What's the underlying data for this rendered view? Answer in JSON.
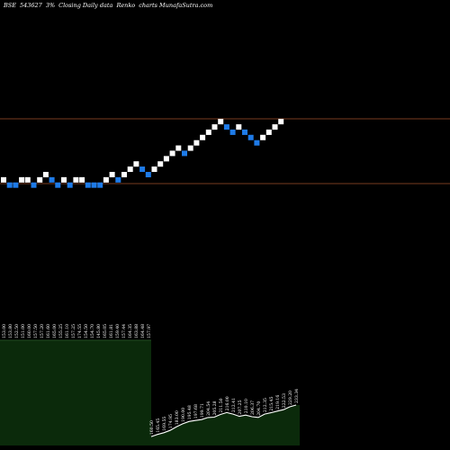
{
  "header": {
    "exchange": "BSE",
    "symbol": "543627",
    "pct": "3%",
    "link": "Closing Daily data",
    "product": "Renko",
    "site": "charts MunafaSutra.com"
  },
  "colors": {
    "background": "#000000",
    "up_brick": "#ffffff",
    "down_brick": "#1e7be8",
    "reference_line": "#a0522d",
    "volume_fill": "#0b2a0b",
    "volume_line": "#ffffff"
  },
  "chart_data": [
    {
      "type": "renko",
      "box_size_pct": 3,
      "reference_lines": [
        236.5,
        172.4
      ],
      "bricks": [
        {
          "dir": "up",
          "price": 176.1
        },
        {
          "dir": "down",
          "price": 170.9
        },
        {
          "dir": "down",
          "price": 170.9
        },
        {
          "dir": "up",
          "price": 176.1
        },
        {
          "dir": "up",
          "price": 176.1
        },
        {
          "dir": "down",
          "price": 170.9
        },
        {
          "dir": "up",
          "price": 176.1
        },
        {
          "dir": "up",
          "price": 181.3
        },
        {
          "dir": "down",
          "price": 176.1
        },
        {
          "dir": "down",
          "price": 170.9
        },
        {
          "dir": "up",
          "price": 176.1
        },
        {
          "dir": "down",
          "price": 170.9
        },
        {
          "dir": "up",
          "price": 176.1
        },
        {
          "dir": "up",
          "price": 176.1
        },
        {
          "dir": "down",
          "price": 170.9
        },
        {
          "dir": "down",
          "price": 170.9
        },
        {
          "dir": "down",
          "price": 170.9
        },
        {
          "dir": "up",
          "price": 176.1
        },
        {
          "dir": "up",
          "price": 181.3
        },
        {
          "dir": "down",
          "price": 176.1
        },
        {
          "dir": "up",
          "price": 181.3
        },
        {
          "dir": "up",
          "price": 186.6
        },
        {
          "dir": "up",
          "price": 191.8
        },
        {
          "dir": "down",
          "price": 186.6
        },
        {
          "dir": "down",
          "price": 181.3
        },
        {
          "dir": "up",
          "price": 186.6
        },
        {
          "dir": "up",
          "price": 191.8
        },
        {
          "dir": "up",
          "price": 197.0
        },
        {
          "dir": "up",
          "price": 202.3
        },
        {
          "dir": "up",
          "price": 207.5
        },
        {
          "dir": "down",
          "price": 202.3
        },
        {
          "dir": "up",
          "price": 207.5
        },
        {
          "dir": "up",
          "price": 212.7
        },
        {
          "dir": "up",
          "price": 218.0
        },
        {
          "dir": "up",
          "price": 223.2
        },
        {
          "dir": "up",
          "price": 228.4
        },
        {
          "dir": "up",
          "price": 233.7
        },
        {
          "dir": "down",
          "price": 228.4
        },
        {
          "dir": "down",
          "price": 223.2
        },
        {
          "dir": "up",
          "price": 228.4
        },
        {
          "dir": "down",
          "price": 223.2
        },
        {
          "dir": "down",
          "price": 218.0
        },
        {
          "dir": "down",
          "price": 212.7
        },
        {
          "dir": "up",
          "price": 218.0
        },
        {
          "dir": "up",
          "price": 223.2
        },
        {
          "dir": "up",
          "price": 228.4
        },
        {
          "dir": "up",
          "price": 233.7
        }
      ]
    },
    {
      "type": "area",
      "series_role": "price_levels",
      "labels": [
        "153.00",
        "153.80",
        "152.50",
        "151.00",
        "160.00",
        "157.50",
        "157.20",
        "161.60",
        "165.00",
        "155.25",
        "161.10",
        "157.25",
        "174.55",
        "154.50",
        "154.70",
        "145.80",
        "165.05",
        "161.81",
        "159.40",
        "157.44",
        "164.35",
        "163.88",
        "164.48",
        "157.97",
        "160.50",
        "165.45",
        "169.55",
        "174.95",
        "183.00",
        "190.00",
        "195.48",
        "197.68",
        "199.71",
        "204.54",
        "205.28",
        "211.50",
        "216.00",
        "212.41",
        "207.25",
        "210.10",
        "206.37",
        "204.70",
        "212.35",
        "215.45",
        "219.16",
        "222.53",
        "229.20",
        "233.34"
      ],
      "values": [
        153.0,
        153.8,
        152.5,
        151.0,
        160.0,
        157.5,
        157.2,
        161.6,
        165.0,
        155.25,
        161.1,
        157.25,
        174.55,
        154.5,
        154.7,
        145.8,
        165.05,
        161.81,
        159.4,
        157.44,
        164.35,
        163.88,
        164.48,
        157.97,
        160.5,
        165.45,
        169.55,
        174.95,
        183.0,
        190.0,
        195.48,
        197.68,
        199.71,
        204.54,
        205.28,
        211.5,
        216.0,
        212.41,
        207.25,
        210.1,
        206.37,
        204.7,
        212.35,
        215.45,
        219.16,
        222.53,
        229.2,
        233.34
      ]
    }
  ]
}
